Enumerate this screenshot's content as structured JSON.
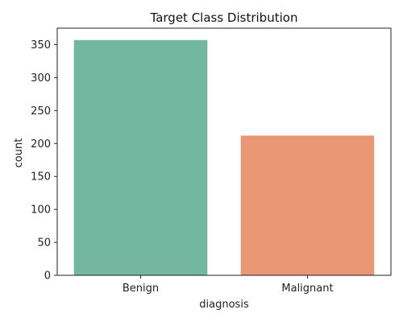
{
  "chart_data": {
    "type": "bar",
    "title": "Target Class Distribution",
    "xlabel": "diagnosis",
    "ylabel": "count",
    "categories": [
      "Benign",
      "Malignant"
    ],
    "values": [
      357,
      212
    ],
    "colors": [
      "#74b7a1",
      "#e99675"
    ],
    "ylim": [
      0,
      375
    ],
    "yticks": [
      0,
      50,
      100,
      150,
      200,
      250,
      300,
      350
    ],
    "grid": false
  }
}
